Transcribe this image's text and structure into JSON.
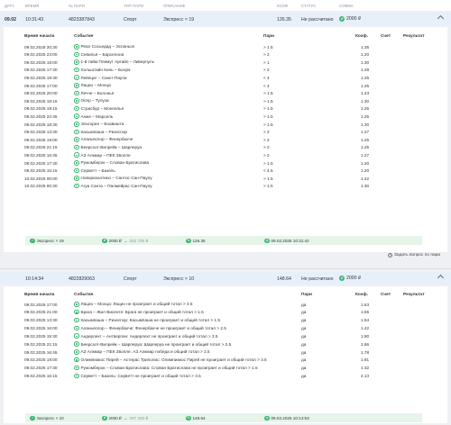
{
  "header": {
    "date": "Дата",
    "time": "Время",
    "number": "№ пари",
    "type": "Тип пари",
    "description": "Описание",
    "coef": "Коэф.",
    "status": "Статус",
    "sum": "Сумма"
  },
  "columns": {
    "start_time": "Время начала",
    "event": "Событие",
    "bet": "Пари",
    "coef": "Коэф.",
    "score": "Счет",
    "result": "Результат"
  },
  "bet1": {
    "date": "09.02",
    "time": "10:31:43",
    "number": "4823387843",
    "type": "Спорт",
    "description": "Экспресс × 19",
    "coef": "126.35",
    "status": "Не рассчитано",
    "sum": "2000 ₽",
    "rows": [
      {
        "time": "09.02.2025 20:30",
        "event": "Реал Сосьедад – Эспаньол",
        "bet": "> 1.5",
        "coef": "1.35"
      },
      {
        "time": "09.02.2025 23:00",
        "event": "Севилья – Барселона",
        "bet": "> 2",
        "coef": "1.20"
      },
      {
        "time": "09.02.2025 18:00",
        "event": "1-й тайм Плимут Аргайл – Ливерпуль",
        "bet": "> 1",
        "coef": "1.30"
      },
      {
        "time": "09.02.2025 17:30",
        "event": "Хольштайн Киль – Бохум",
        "bet": "> 2",
        "coef": "1.28"
      },
      {
        "time": "09.02.2025 19:30",
        "event": "Лейпциг – Санкт-Паули",
        "bet": "< 4",
        "coef": "1.25"
      },
      {
        "time": "09.02.2025 17:00",
        "event": "Лацио – Монца",
        "bet": "< 4",
        "coef": "1.25"
      },
      {
        "time": "09.02.2025 20:00",
        "event": "Лечче – Болонья",
        "bet": "> 1.5",
        "coef": "1.43"
      },
      {
        "time": "09.02.2025 19:15",
        "event": "Осер – Тулуза",
        "bet": "> 1.5",
        "coef": "1.30"
      },
      {
        "time": "09.02.2025 19:15",
        "event": "Страсбур – Монпелье",
        "bet": "> 1.5",
        "coef": "1.25"
      },
      {
        "time": "09.02.2025 22:45",
        "event": "Анже – Марсель",
        "bet": "> 1.5",
        "coef": "1.25"
      },
      {
        "time": "09.02.2025 18:30",
        "event": "Эльторил – Боавишта",
        "bet": "> 1.5",
        "coef": "1.30"
      },
      {
        "time": "09.02.2025 13:30",
        "event": "Касымпаша – Ризеспор",
        "bet": "> 2",
        "coef": "1.27"
      },
      {
        "time": "09.02.2025 19:00",
        "event": "Аланьяспор – Фенербахче",
        "bet": "> 2",
        "coef": "1.25"
      },
      {
        "time": "09.02.2025 21:15",
        "event": "Беерсхот-Вилрейк – Шарлеруа",
        "bet": "> 2",
        "coef": "1.25"
      },
      {
        "time": "09.02.2025 16:45",
        "event": "АЗ Алкмар – ПЕК Зволле",
        "bet": "> 2",
        "coef": "1.27"
      },
      {
        "time": "09.02.2025 17:30",
        "event": "Ружомберок – Слован Братислава",
        "bet": "> 1.5",
        "coef": "1.20"
      },
      {
        "time": "09.02.2025 16:15",
        "event": "Серветт – Базель",
        "bet": "< 4.5",
        "coef": "1.20"
      },
      {
        "time": "10.02.2025 00:00",
        "event": "Новоризонтино – Сантос Сан-Паулу",
        "bet": "> 1.5",
        "coef": "1.42"
      },
      {
        "time": "10.02.2025 00:30",
        "event": "Агуа Санта – Палмейрас Сан-Паулу",
        "bet": "> 1.5",
        "coef": "1.30"
      }
    ],
    "footer": {
      "express": "Экспресс × 19",
      "stake": "2000 ₽",
      "win": "252 700 ₽",
      "coef": "126.35",
      "date": "09.02.2025 10:31:42"
    }
  },
  "help_link": "Задать вопрос по пари",
  "bet2": {
    "date": "",
    "time": "10:14:34",
    "number": "4822829063",
    "type": "Спорт",
    "description": "Экспресс × 10",
    "coef": "148.64",
    "status": "Не рассчитано",
    "sum": "2000 ₽",
    "rows": [
      {
        "time": "09.02.2025 17:00",
        "event": "Лацио – Монца: Лацио не проиграет и общий тотал > 3.5",
        "bet": "да",
        "coef": "1.63"
      },
      {
        "time": "09.02.2025 21:00",
        "event": "Брага – Жил Висенте: Брага не проиграет и общий тотал > 1.5",
        "bet": "да",
        "coef": "1.55"
      },
      {
        "time": "09.02.2025 13:30",
        "event": "Касымпаша – Ризеспор: Касымпаша не проиграет и общий тотал > 1.5",
        "bet": "да",
        "coef": "1.54"
      },
      {
        "time": "09.02.2025 16:00",
        "event": "Аланьяспор – Фенербахче: Фенербахче не проиграет и общий тотал > 2.5",
        "bet": "да",
        "coef": "1.42"
      },
      {
        "time": "09.02.2025 15:30",
        "event": "Андерлехт – Антверпен: Андерлехт не проиграет и общий тотал > 3.5",
        "bet": "да",
        "coef": "1.90"
      },
      {
        "time": "09.02.2025 21:15",
        "event": "Беерсхот-Вилрейк – Шарлеруа: Шарлеруа не проиграет и общий тотал > 2.5",
        "bet": "да",
        "coef": "1.66"
      },
      {
        "time": "09.02.2025 16:45",
        "event": "АЗ Алкмар – ПЕК Зволле: АЗ Алкмар победа и общий тотал > 2.5",
        "bet": "да",
        "coef": "1.78"
      },
      {
        "time": "09.02.2025 19:00",
        "event": "Олимпиакос Пирей – Астерас Триполис: Олимпиакос Пирей не проиграет и общий тотал > 3.5",
        "bet": "да",
        "coef": "1.91"
      },
      {
        "time": "09.02.2025 17:30",
        "event": "Ружомберок – Слован Братислава: Слован Братислава не проиграет и общий тотал > 1.5",
        "bet": "да",
        "coef": "1.32"
      },
      {
        "time": "09.02.2025 16:15",
        "event": "Серветт – Базель: Серветт не проиграет и общий тотал > 3.5",
        "bet": "да",
        "coef": "2.13"
      }
    ],
    "footer": {
      "express": "Экспресс × 10",
      "stake": "2000 ₽",
      "win": "297 280 ₽",
      "coef": "148.64",
      "date": "09.02.2025 10:14:53"
    }
  }
}
